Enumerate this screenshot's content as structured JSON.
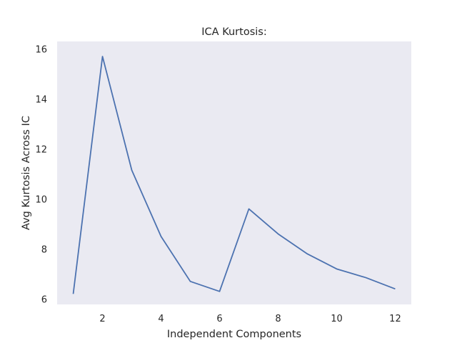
{
  "chart_data": {
    "type": "line",
    "title": "ICA Kurtosis:",
    "xlabel": "Independent Components",
    "ylabel": "Avg Kurtosis Across IC",
    "x": [
      1,
      2,
      3,
      4,
      5,
      6,
      7,
      8,
      9,
      10,
      11,
      12
    ],
    "series": [
      {
        "values": [
          6.2,
          15.7,
          11.15,
          8.5,
          6.7,
          6.3,
          9.6,
          8.6,
          7.8,
          7.2,
          6.85,
          6.4
        ]
      }
    ],
    "xlim": [
      0.45,
      12.55
    ],
    "ylim": [
      5.78,
      16.3
    ],
    "xticks": [
      2,
      4,
      6,
      8,
      10,
      12
    ],
    "yticks": [
      6,
      8,
      10,
      12,
      14,
      16
    ],
    "grid": false,
    "colors": {
      "background": "#eaeaf2",
      "line": "#4c72b0",
      "text": "#262626"
    }
  }
}
